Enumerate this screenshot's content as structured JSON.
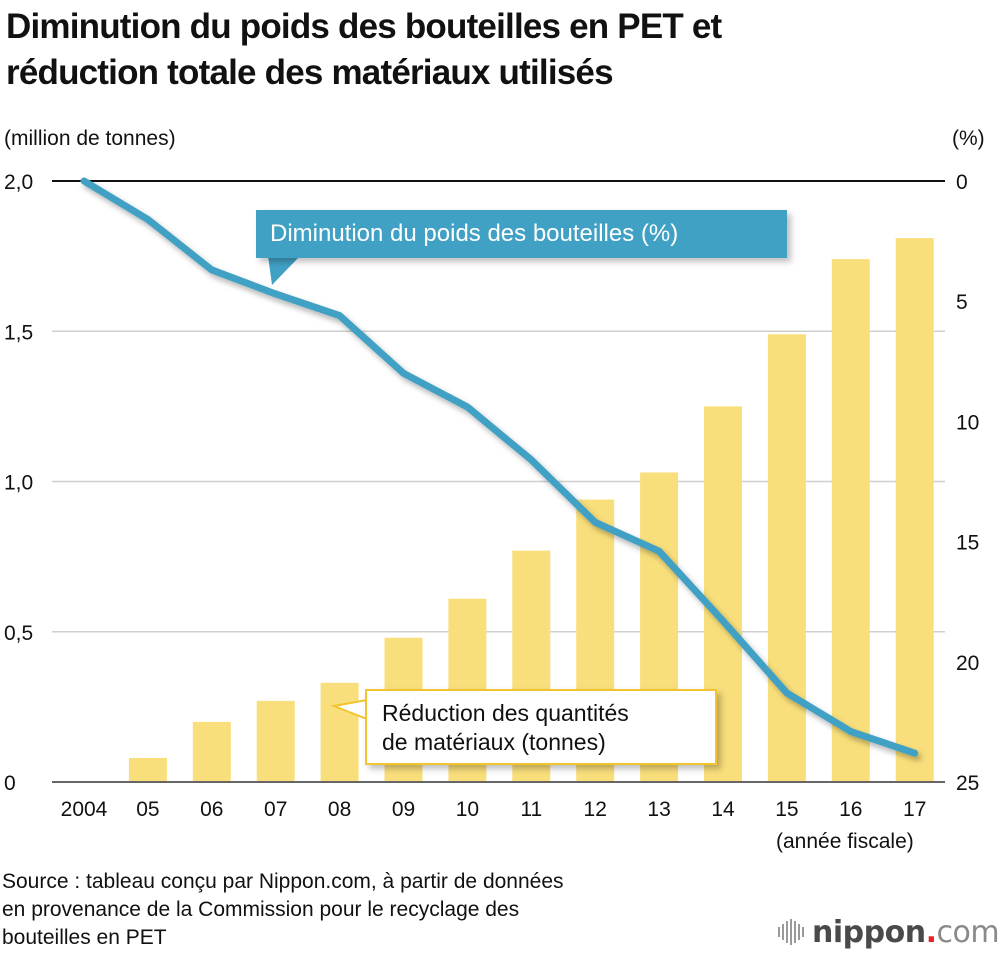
{
  "title_lines": [
    "Diminution du poids des bouteilles en PET et",
    "réduction totale des matériaux utilisés"
  ],
  "chart_data": {
    "type": "bar+line",
    "title": "Diminution du poids des bouteilles en PET et réduction totale des matériaux utilisés",
    "categories": [
      "2004",
      "05",
      "06",
      "07",
      "08",
      "09",
      "10",
      "11",
      "12",
      "13",
      "14",
      "15",
      "16",
      "17"
    ],
    "xlabel": "(année fiscale)",
    "y_left": {
      "label": "(million de tonnes)",
      "range": [
        0,
        2.0
      ],
      "ticks": [
        0,
        0.5,
        1.0,
        1.5,
        2.0
      ],
      "tick_labels": [
        "0",
        "0,5",
        "1,0",
        "1,5",
        "2,0"
      ]
    },
    "y_right": {
      "label": "(%)",
      "range": [
        0,
        25
      ],
      "inverted": true,
      "ticks": [
        0,
        5,
        10,
        15,
        20,
        25
      ],
      "tick_labels": [
        "0",
        "5",
        "10",
        "15",
        "20",
        "25"
      ]
    },
    "grid": true,
    "series": [
      {
        "name": "Réduction des quantités de matériaux (tonnes)",
        "type": "bar",
        "axis": "left",
        "color": "#f9df7b",
        "values": [
          0,
          0.08,
          0.2,
          0.27,
          0.33,
          0.48,
          0.61,
          0.77,
          0.94,
          1.03,
          1.25,
          1.49,
          1.74,
          1.81
        ]
      },
      {
        "name": "Diminution du poids des bouteilles (%)",
        "type": "line",
        "axis": "right",
        "color": "#41a1c4",
        "values": [
          0,
          1.6,
          3.7,
          4.7,
          5.6,
          8.0,
          9.4,
          11.6,
          14.2,
          15.4,
          18.3,
          21.3,
          22.9,
          23.8
        ]
      }
    ],
    "legend": {
      "line_label": "Diminution du poids des bouteilles (%)",
      "bar_label_lines": [
        "Réduction des quantités",
        "de matériaux (tonnes)"
      ]
    }
  },
  "source_lines": [
    "Source : tableau conçu par Nippon.com, à partir de données",
    "en provenance de la Commission pour le recyclage des",
    "bouteilles en PET"
  ],
  "logo": {
    "name": "nippon",
    "dot": ".",
    "tld": "com",
    "accent": "#e8262a"
  }
}
